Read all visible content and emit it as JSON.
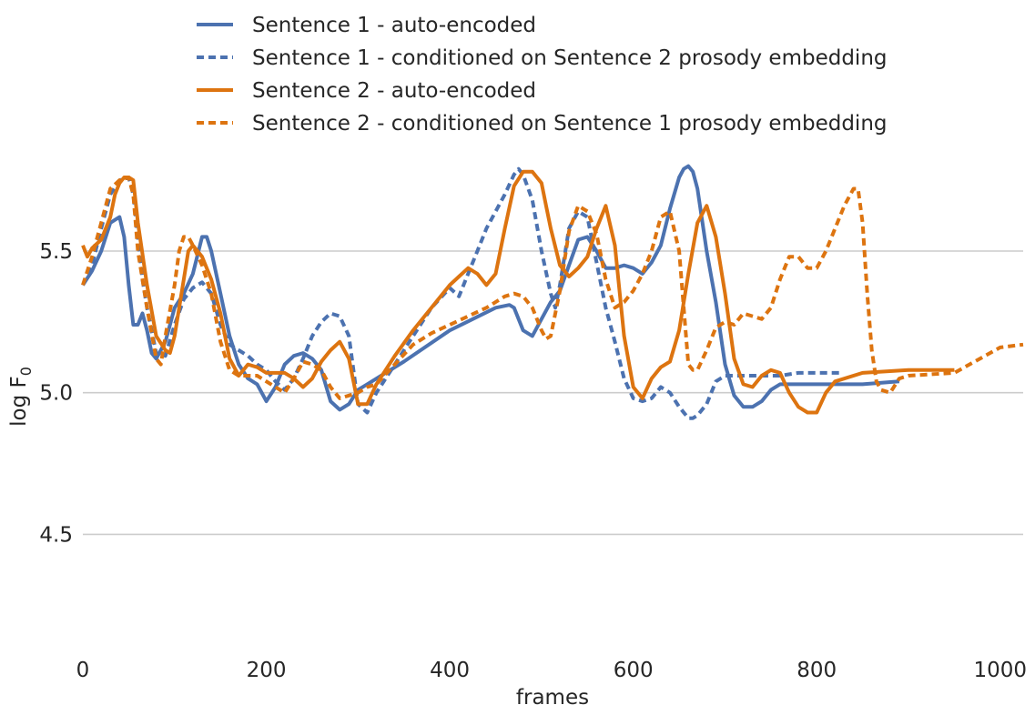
{
  "chart_data": {
    "type": "line",
    "xlabel": "frames",
    "ylabel": "log F",
    "ylabel_sub": "0",
    "xlim": [
      0,
      1025
    ],
    "ylim": [
      4.1,
      5.85
    ],
    "xticks": [
      0,
      200,
      400,
      600,
      800,
      1000
    ],
    "yticks": [
      4.5,
      5.0,
      5.5
    ],
    "xtick_labels": [
      "0",
      "200",
      "400",
      "600",
      "800",
      "1000"
    ],
    "ytick_labels": [
      "4.5",
      "5.0",
      "5.5"
    ],
    "grid": "horizontal",
    "legend": "top-center",
    "series": [
      {
        "name": "Sentence 1 - auto-encoded",
        "color": "#4c72b0",
        "dash": "solid",
        "x": [
          0,
          10,
          20,
          30,
          40,
          45,
          50,
          55,
          60,
          65,
          70,
          75,
          80,
          90,
          100,
          110,
          120,
          130,
          135,
          140,
          150,
          160,
          170,
          180,
          190,
          200,
          210,
          220,
          230,
          240,
          250,
          260,
          270,
          280,
          290,
          300,
          310,
          350,
          400,
          450,
          465,
          470,
          480,
          490,
          500,
          510,
          520,
          530,
          540,
          550,
          560,
          570,
          580,
          590,
          600,
          610,
          620,
          630,
          640,
          650,
          655,
          660,
          665,
          670,
          680,
          690,
          700,
          710,
          720,
          730,
          740,
          750,
          760,
          780,
          800,
          850,
          890
        ],
        "values": [
          5.38,
          5.43,
          5.5,
          5.6,
          5.62,
          5.55,
          5.38,
          5.24,
          5.24,
          5.28,
          5.22,
          5.14,
          5.12,
          5.18,
          5.3,
          5.35,
          5.42,
          5.55,
          5.55,
          5.5,
          5.35,
          5.2,
          5.1,
          5.05,
          5.03,
          4.97,
          5.02,
          5.1,
          5.13,
          5.14,
          5.12,
          5.08,
          4.97,
          4.94,
          4.96,
          5.01,
          5.03,
          5.11,
          5.22,
          5.3,
          5.31,
          5.3,
          5.22,
          5.2,
          5.26,
          5.32,
          5.36,
          5.45,
          5.54,
          5.55,
          5.5,
          5.44,
          5.44,
          5.45,
          5.44,
          5.42,
          5.46,
          5.52,
          5.65,
          5.76,
          5.79,
          5.8,
          5.78,
          5.72,
          5.5,
          5.32,
          5.1,
          4.99,
          4.95,
          4.95,
          4.97,
          5.01,
          5.03,
          5.03,
          5.03,
          5.03,
          5.04
        ]
      },
      {
        "name": "Sentence 1 - conditioned on Sentence 2 prosody embedding",
        "color": "#4c72b0",
        "dash": "dotted",
        "x": [
          0,
          10,
          20,
          30,
          40,
          50,
          55,
          60,
          65,
          70,
          80,
          90,
          100,
          110,
          120,
          130,
          140,
          150,
          160,
          170,
          180,
          190,
          200,
          210,
          220,
          230,
          240,
          250,
          260,
          270,
          280,
          290,
          300,
          310,
          320,
          340,
          360,
          380,
          400,
          410,
          420,
          430,
          440,
          460,
          470,
          475,
          480,
          490,
          500,
          510,
          515,
          520,
          530,
          540,
          550,
          560,
          570,
          580,
          590,
          600,
          610,
          620,
          630,
          640,
          650,
          660,
          665,
          670,
          680,
          690,
          700,
          720,
          740,
          760,
          780,
          800,
          825
        ],
        "values": [
          5.38,
          5.45,
          5.58,
          5.7,
          5.75,
          5.76,
          5.7,
          5.55,
          5.4,
          5.3,
          5.14,
          5.13,
          5.24,
          5.33,
          5.37,
          5.39,
          5.35,
          5.24,
          5.17,
          5.15,
          5.13,
          5.1,
          5.08,
          5.04,
          5.01,
          5.05,
          5.12,
          5.2,
          5.25,
          5.28,
          5.27,
          5.2,
          4.96,
          4.93,
          5.0,
          5.1,
          5.2,
          5.3,
          5.37,
          5.34,
          5.42,
          5.5,
          5.58,
          5.7,
          5.77,
          5.79,
          5.77,
          5.68,
          5.5,
          5.35,
          5.3,
          5.38,
          5.58,
          5.64,
          5.62,
          5.46,
          5.3,
          5.18,
          5.05,
          4.98,
          4.97,
          4.98,
          5.02,
          5.0,
          4.95,
          4.91,
          4.91,
          4.92,
          4.96,
          5.04,
          5.06,
          5.06,
          5.06,
          5.06,
          5.07,
          5.07,
          5.07
        ]
      },
      {
        "name": "Sentence 2 - auto-encoded",
        "color": "#dd7410",
        "dash": "solid",
        "x": [
          0,
          5,
          10,
          20,
          30,
          35,
          40,
          45,
          50,
          55,
          60,
          70,
          80,
          90,
          95,
          100,
          110,
          115,
          120,
          130,
          140,
          150,
          160,
          170,
          180,
          190,
          200,
          210,
          220,
          230,
          240,
          250,
          260,
          270,
          280,
          290,
          300,
          310,
          320,
          340,
          360,
          380,
          400,
          410,
          420,
          430,
          440,
          450,
          460,
          470,
          480,
          490,
          500,
          505,
          510,
          520,
          530,
          540,
          550,
          560,
          570,
          580,
          590,
          600,
          610,
          620,
          630,
          640,
          650,
          660,
          670,
          680,
          690,
          700,
          710,
          720,
          730,
          740,
          750,
          760,
          770,
          780,
          790,
          800,
          810,
          820,
          850,
          900,
          950
        ],
        "values": [
          5.52,
          5.48,
          5.51,
          5.54,
          5.62,
          5.7,
          5.74,
          5.76,
          5.76,
          5.75,
          5.6,
          5.38,
          5.2,
          5.15,
          5.14,
          5.2,
          5.4,
          5.5,
          5.52,
          5.48,
          5.4,
          5.28,
          5.12,
          5.06,
          5.1,
          5.09,
          5.07,
          5.07,
          5.07,
          5.05,
          5.02,
          5.05,
          5.11,
          5.15,
          5.18,
          5.12,
          4.96,
          4.96,
          5.03,
          5.13,
          5.22,
          5.3,
          5.38,
          5.41,
          5.44,
          5.42,
          5.38,
          5.42,
          5.58,
          5.73,
          5.78,
          5.78,
          5.74,
          5.66,
          5.58,
          5.45,
          5.41,
          5.44,
          5.48,
          5.58,
          5.66,
          5.52,
          5.2,
          5.02,
          4.98,
          5.05,
          5.09,
          5.11,
          5.22,
          5.42,
          5.6,
          5.66,
          5.55,
          5.35,
          5.12,
          5.03,
          5.02,
          5.06,
          5.08,
          5.07,
          5.0,
          4.95,
          4.93,
          4.93,
          5.0,
          5.04,
          5.07,
          5.08,
          5.08
        ]
      },
      {
        "name": "Sentence 2 - conditioned on Sentence 1 prosody embedding",
        "color": "#dd7410",
        "dash": "dotted",
        "x": [
          0,
          10,
          20,
          30,
          40,
          50,
          55,
          60,
          70,
          80,
          85,
          90,
          100,
          105,
          110,
          115,
          120,
          130,
          140,
          150,
          160,
          170,
          180,
          190,
          200,
          210,
          220,
          230,
          240,
          250,
          260,
          270,
          280,
          290,
          300,
          310,
          320,
          340,
          360,
          380,
          400,
          420,
          440,
          460,
          470,
          480,
          490,
          500,
          505,
          510,
          520,
          530,
          540,
          550,
          560,
          570,
          580,
          590,
          600,
          610,
          620,
          630,
          640,
          650,
          655,
          660,
          665,
          670,
          680,
          690,
          700,
          710,
          720,
          730,
          740,
          750,
          760,
          770,
          780,
          790,
          800,
          810,
          820,
          830,
          840,
          845,
          850,
          855,
          860,
          865,
          870,
          880,
          890,
          900,
          950,
          1000,
          1025
        ],
        "values": [
          5.38,
          5.48,
          5.6,
          5.72,
          5.75,
          5.76,
          5.7,
          5.5,
          5.3,
          5.12,
          5.1,
          5.2,
          5.38,
          5.5,
          5.55,
          5.55,
          5.52,
          5.45,
          5.35,
          5.18,
          5.08,
          5.06,
          5.06,
          5.06,
          5.04,
          5.02,
          5.0,
          5.05,
          5.11,
          5.1,
          5.08,
          5.02,
          4.98,
          4.99,
          5.0,
          5.02,
          5.03,
          5.1,
          5.17,
          5.21,
          5.24,
          5.27,
          5.3,
          5.34,
          5.35,
          5.34,
          5.3,
          5.22,
          5.19,
          5.2,
          5.36,
          5.57,
          5.66,
          5.64,
          5.56,
          5.4,
          5.3,
          5.32,
          5.36,
          5.42,
          5.5,
          5.62,
          5.64,
          5.5,
          5.3,
          5.1,
          5.08,
          5.08,
          5.15,
          5.23,
          5.25,
          5.24,
          5.28,
          5.27,
          5.26,
          5.3,
          5.4,
          5.48,
          5.48,
          5.44,
          5.44,
          5.5,
          5.58,
          5.66,
          5.72,
          5.72,
          5.6,
          5.35,
          5.15,
          5.04,
          5.01,
          5.0,
          5.05,
          5.06,
          5.07,
          5.16,
          5.17
        ]
      }
    ]
  }
}
